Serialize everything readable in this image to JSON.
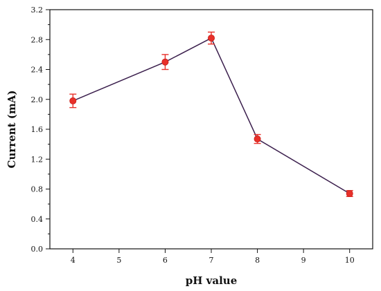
{
  "chart_data": {
    "type": "line",
    "xlabel": "pH value",
    "ylabel": "Current (mA)",
    "x_ticks": [
      "4",
      "5",
      "6",
      "7",
      "8",
      "9",
      "10"
    ],
    "y_ticks": [
      "0.0",
      "0.4",
      "0.8",
      "1.2",
      "1.6",
      "2.0",
      "2.4",
      "2.8",
      "3.2"
    ],
    "xlim": [
      3.5,
      10.5
    ],
    "ylim": [
      0,
      3.2
    ],
    "grid": false,
    "series": [
      {
        "points": [
          {
            "x": 4,
            "y": 1.98,
            "error": 0.09
          },
          {
            "x": 6,
            "y": 2.5,
            "error": 0.1
          },
          {
            "x": 7,
            "y": 2.82,
            "error": 0.08
          },
          {
            "x": 8,
            "y": 1.47,
            "error": 0.06
          },
          {
            "x": 10,
            "y": 0.74,
            "error": 0.04
          }
        ],
        "line_color": "#3b1f4d",
        "marker_color": "#e8302a"
      }
    ]
  }
}
